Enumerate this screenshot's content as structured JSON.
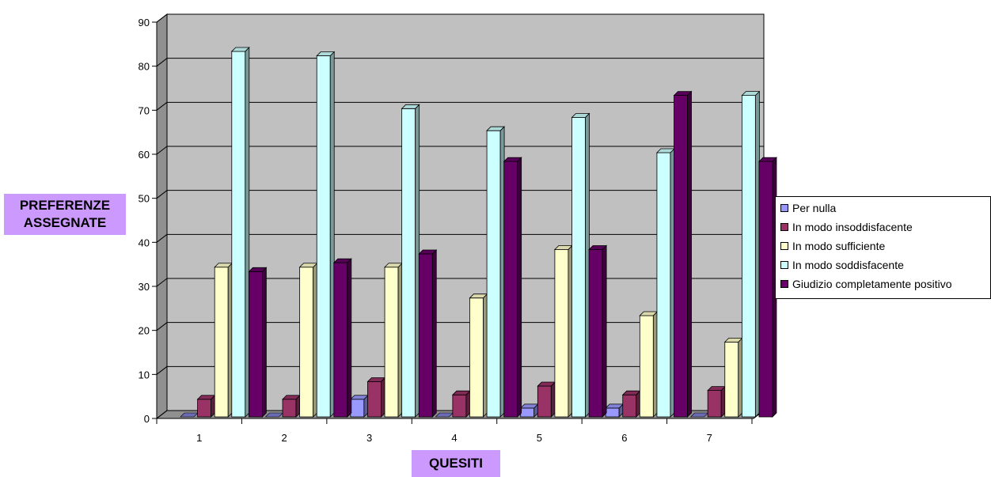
{
  "chart_data": {
    "type": "bar",
    "title": "",
    "xlabel": "QUESITI",
    "ylabel_line1": "PREFERENZE",
    "ylabel_line2": "ASSEGNATE",
    "categories": [
      "1",
      "2",
      "3",
      "4",
      "5",
      "6",
      "7"
    ],
    "ylim": [
      0,
      90
    ],
    "yticks": [
      "0",
      "10",
      "20",
      "30",
      "40",
      "50",
      "60",
      "70",
      "80",
      "90"
    ],
    "grid": true,
    "legend_position": "right",
    "series": [
      {
        "name": "Per nulla",
        "color": "#9999ff",
        "values": [
          0,
          0,
          4,
          0,
          2,
          2,
          0
        ]
      },
      {
        "name": "In modo insoddisfacente",
        "color": "#993366",
        "values": [
          4,
          4,
          8,
          5,
          7,
          5,
          6
        ]
      },
      {
        "name": "In modo sufficiente",
        "color": "#ffffcc",
        "values": [
          34,
          34,
          34,
          27,
          38,
          23,
          17
        ]
      },
      {
        "name": "In modo soddisfacente",
        "color": "#ccffff",
        "values": [
          83,
          82,
          70,
          65,
          68,
          60,
          73
        ]
      },
      {
        "name": "Giudizio completamente positivo",
        "color": "#660066",
        "values": [
          33,
          35,
          37,
          58,
          38,
          73,
          58
        ]
      }
    ]
  }
}
